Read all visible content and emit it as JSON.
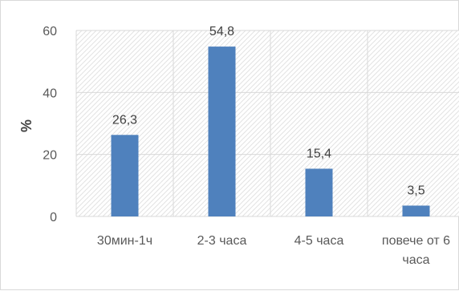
{
  "chart_data": {
    "type": "bar",
    "categories": [
      [
        "30мин-1ч"
      ],
      [
        "2-3 часа"
      ],
      [
        "4-5 часа"
      ],
      [
        "повече от 6",
        "часа"
      ]
    ],
    "values": [
      26.3,
      54.8,
      15.4,
      3.5
    ],
    "data_labels": [
      "26,3",
      "54,8",
      "15,4",
      "3,5"
    ],
    "ylabel": "%",
    "ylim": [
      0,
      60
    ],
    "yticks": [
      0,
      20,
      40,
      60
    ],
    "ytick_labels": [
      "0",
      "20",
      "40",
      "60"
    ],
    "grid": true,
    "plot_area_pattern": "diagonal-hatch",
    "colors": {
      "bar": "#4f81bd",
      "grid": "#d9d9d9",
      "hatch": "#e3e3e3",
      "text": "#595959"
    }
  }
}
